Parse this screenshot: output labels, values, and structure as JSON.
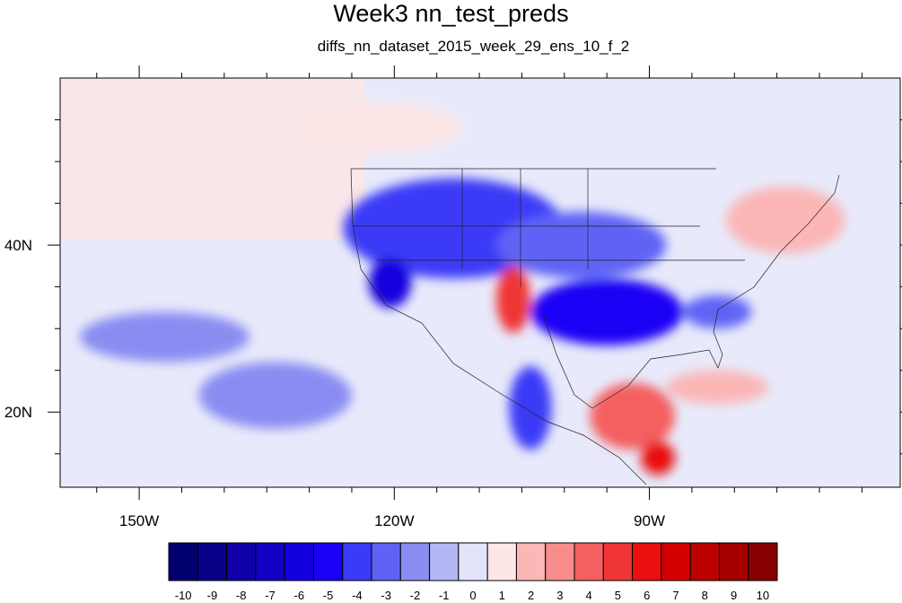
{
  "title": "Week3 nn_test_preds",
  "subtitle": "diffs_nn_dataset_2015_week_29_ens_10_f_2",
  "axes": {
    "lon_ticks": [
      {
        "value": -150,
        "label": "150W"
      },
      {
        "value": -120,
        "label": "120W"
      },
      {
        "value": -90,
        "label": "90W"
      }
    ],
    "lat_ticks": [
      {
        "value": 40,
        "label": "40N"
      },
      {
        "value": 20,
        "label": "20N"
      }
    ],
    "lon_range": [
      -159.3,
      -60.5
    ],
    "lat_range": [
      11,
      60
    ]
  },
  "colorbar": {
    "labels": [
      "-10",
      "-9",
      "-8",
      "-7",
      "-6",
      "-5",
      "-4",
      "-3",
      "-2",
      "-1",
      "0",
      "1",
      "2",
      "3",
      "4",
      "5",
      "6",
      "7",
      "8",
      "9",
      "10"
    ],
    "colors": [
      "#02006e",
      "#0a0088",
      "#0f00a8",
      "#1200c4",
      "#1400de",
      "#1a00f5",
      "#3b3bf7",
      "#5e63f5",
      "#8a8cf2",
      "#b3b6f2",
      "#e1e4fa",
      "#fde6e6",
      "#fbb6b6",
      "#f88c8c",
      "#f45f5f",
      "#ef3535",
      "#eb0f0f",
      "#d40000",
      "#bc0000",
      "#a40000",
      "#860000"
    ]
  },
  "map_regions": [
    {
      "name": "us-west-blue",
      "value": -4,
      "lon": -113,
      "lat": 42,
      "rx": 13,
      "ry": 6
    },
    {
      "name": "california-blue",
      "value": -6,
      "lon": -120.5,
      "lat": 35.5,
      "rx": 2.5,
      "ry": 3
    },
    {
      "name": "southeast-blue",
      "value": -5,
      "lon": -95,
      "lat": 32,
      "rx": 9,
      "ry": 4
    },
    {
      "name": "plains-blue",
      "value": -3,
      "lon": -98,
      "lat": 40,
      "rx": 10,
      "ry": 4
    },
    {
      "name": "mexico-pacific-blue",
      "value": -4,
      "lon": -104,
      "lat": 20.5,
      "rx": 2.5,
      "ry": 5
    },
    {
      "name": "atlantic-blue",
      "value": -3,
      "lon": -82,
      "lat": 32,
      "rx": 4,
      "ry": 2
    },
    {
      "name": "pacific-blue",
      "value": -2,
      "lon": -147,
      "lat": 29,
      "rx": 10,
      "ry": 3
    },
    {
      "name": "pacific-blue-south",
      "value": -2,
      "lon": -134,
      "lat": 22,
      "rx": 9,
      "ry": 4
    },
    {
      "name": "new-mexico-red",
      "value": 5,
      "lon": -106,
      "lat": 33.5,
      "rx": 2,
      "ry": 4
    },
    {
      "name": "caribbean-red",
      "value": 4,
      "lon": -92,
      "lat": 19.5,
      "rx": 5,
      "ry": 4
    },
    {
      "name": "central-america-red",
      "value": 6,
      "lon": -89,
      "lat": 14.5,
      "rx": 2,
      "ry": 2
    },
    {
      "name": "northeast-red",
      "value": 2,
      "lon": -74,
      "lat": 43,
      "rx": 7,
      "ry": 4
    },
    {
      "name": "north-pacific-red",
      "value": 1,
      "lon": -122,
      "lat": 54,
      "rx": 10,
      "ry": 3
    },
    {
      "name": "gulf-atlantic-red",
      "value": 2,
      "lon": -82,
      "lat": 23,
      "rx": 6,
      "ry": 2
    }
  ]
}
